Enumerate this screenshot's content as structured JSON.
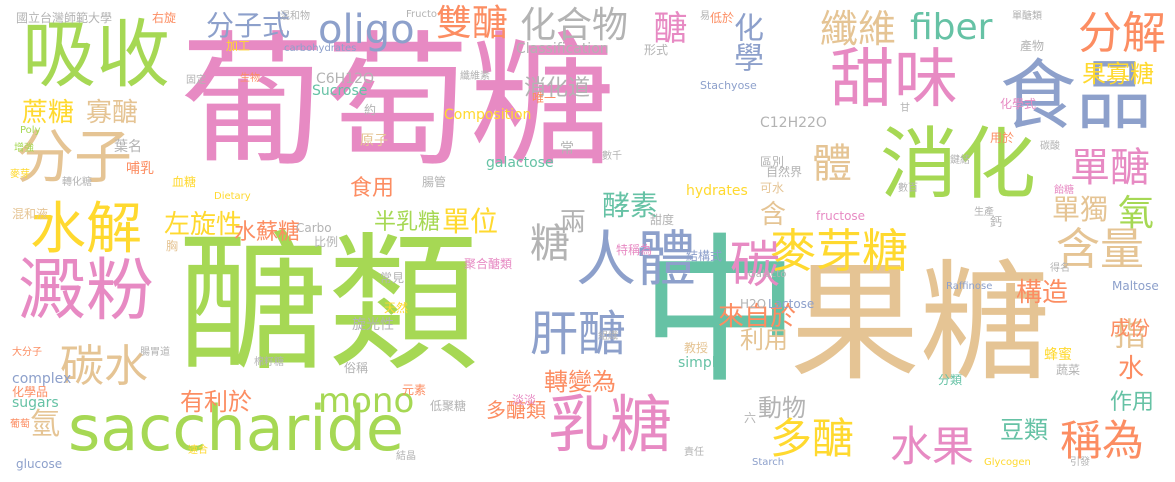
{
  "colors": {
    "pink": "#e78ac3",
    "green": "#a6d854",
    "teal": "#66c2a5",
    "blue": "#8da0cb",
    "orange": "#fc8d62",
    "yellow": "#ffd92f",
    "tan": "#e5c494",
    "grey": "#b3b3b3"
  },
  "words": [
    {
      "text": "葡萄糖",
      "color": "pink"
    },
    {
      "text": "醣類",
      "color": "green"
    },
    {
      "text": "果糖",
      "color": "tan"
    },
    {
      "text": "中",
      "color": "teal"
    },
    {
      "text": "saccharide",
      "color": "green"
    },
    {
      "text": "吸收",
      "color": "green"
    },
    {
      "text": "食品",
      "color": "blue"
    },
    {
      "text": "消化",
      "color": "green"
    },
    {
      "text": "甜味",
      "color": "pink"
    },
    {
      "text": "澱粉",
      "color": "pink"
    },
    {
      "text": "人體",
      "color": "blue"
    },
    {
      "text": "乳糖",
      "color": "pink"
    },
    {
      "text": "分子",
      "color": "tan"
    },
    {
      "text": "水解",
      "color": "yellow"
    },
    {
      "text": "麥芽糖",
      "color": "yellow"
    },
    {
      "text": "碳水",
      "color": "tan"
    },
    {
      "text": "分解",
      "color": "orange"
    },
    {
      "text": "含量",
      "color": "tan"
    },
    {
      "text": "單醣",
      "color": "pink"
    },
    {
      "text": "纖維",
      "color": "tan"
    },
    {
      "text": "fiber",
      "color": "teal"
    },
    {
      "text": "oligo",
      "color": "blue"
    },
    {
      "text": "肝醣",
      "color": "blue"
    },
    {
      "text": "多醣",
      "color": "yellow"
    },
    {
      "text": "水果",
      "color": "pink"
    },
    {
      "text": "稱為",
      "color": "orange"
    },
    {
      "text": "化合物",
      "color": "grey"
    },
    {
      "text": "雙醣",
      "color": "orange"
    },
    {
      "text": "分子式",
      "color": "blue"
    },
    {
      "text": "化學",
      "color": "blue"
    },
    {
      "text": "碳",
      "color": "pink"
    },
    {
      "text": "mono",
      "color": "green"
    },
    {
      "text": "蔗糖",
      "color": "yellow"
    },
    {
      "text": "寡醣",
      "color": "tan"
    },
    {
      "text": "果寡糖",
      "color": "yellow"
    },
    {
      "text": "醣",
      "color": "pink"
    },
    {
      "text": "體",
      "color": "tan"
    },
    {
      "text": "氧",
      "color": "green"
    },
    {
      "text": "單獨",
      "color": "tan"
    },
    {
      "text": "構造",
      "color": "orange"
    },
    {
      "text": "來自於",
      "color": "orange"
    },
    {
      "text": "左旋性",
      "color": "yellow"
    },
    {
      "text": "半乳糖",
      "color": "green"
    },
    {
      "text": "單位",
      "color": "yellow"
    },
    {
      "text": "酵素",
      "color": "teal"
    },
    {
      "text": "食用",
      "color": "orange"
    },
    {
      "text": "水蘇糖",
      "color": "orange"
    },
    {
      "text": "糖",
      "color": "grey"
    },
    {
      "text": "兩",
      "color": "grey"
    },
    {
      "text": "轉變為",
      "color": "orange"
    },
    {
      "text": "有利於",
      "color": "orange"
    },
    {
      "text": "多醣類",
      "color": "orange"
    },
    {
      "text": "動物",
      "color": "grey"
    },
    {
      "text": "利用",
      "color": "tan"
    },
    {
      "text": "指",
      "color": "tan"
    },
    {
      "text": "水",
      "color": "orange"
    },
    {
      "text": "豆類",
      "color": "teal"
    },
    {
      "text": "作用",
      "color": "teal"
    },
    {
      "text": "成份",
      "color": "orange"
    },
    {
      "text": "氫",
      "color": "tan"
    },
    {
      "text": "含",
      "color": "tan"
    },
    {
      "text": "消化道",
      "color": "grey"
    },
    {
      "text": "Composition",
      "color": "yellow"
    },
    {
      "text": "Classification",
      "color": "grey"
    },
    {
      "text": "C6H12O",
      "color": "grey"
    },
    {
      "text": "C12H22O",
      "color": "grey"
    },
    {
      "text": "Sucrose",
      "color": "teal"
    },
    {
      "text": "Stachyose",
      "color": "blue"
    },
    {
      "text": "galactose",
      "color": "teal"
    },
    {
      "text": "hydrates",
      "color": "yellow"
    },
    {
      "text": "fructose",
      "color": "pink"
    },
    {
      "text": "Lactose",
      "color": "blue"
    },
    {
      "text": "Maltose",
      "color": "blue"
    },
    {
      "text": "Raffinose",
      "color": "blue"
    },
    {
      "text": "Starch",
      "color": "blue"
    },
    {
      "text": "Glycogen",
      "color": "yellow"
    },
    {
      "text": "simple",
      "color": "teal"
    },
    {
      "text": "complex",
      "color": "blue"
    },
    {
      "text": "sugars",
      "color": "teal"
    },
    {
      "text": "glucose",
      "color": "blue"
    },
    {
      "text": "Poly",
      "color": "green"
    },
    {
      "text": "Carbo",
      "color": "grey"
    },
    {
      "text": "Dietary",
      "color": "yellow"
    },
    {
      "text": "Galacto",
      "color": "grey"
    },
    {
      "text": "H2O",
      "color": "grey"
    },
    {
      "text": "carbohydrates",
      "color": "blue"
    },
    {
      "text": "Fructo",
      "color": "grey"
    },
    {
      "text": "國立台灣師範大學",
      "color": "grey"
    },
    {
      "text": "混和物",
      "color": "grey"
    },
    {
      "text": "哺乳",
      "color": "orange"
    },
    {
      "text": "葉名",
      "color": "grey"
    },
    {
      "text": "轉化糖",
      "color": "grey"
    },
    {
      "text": "血糖",
      "color": "yellow"
    },
    {
      "text": "麥芽",
      "color": "yellow"
    },
    {
      "text": "混和液",
      "color": "tan"
    },
    {
      "text": "旋光性",
      "color": "grey"
    },
    {
      "text": "比例",
      "color": "grey"
    },
    {
      "text": "腸胃道",
      "color": "grey"
    },
    {
      "text": "蜂蜜",
      "color": "yellow"
    },
    {
      "text": "蔬菜",
      "color": "grey"
    },
    {
      "text": "分類",
      "color": "teal"
    },
    {
      "text": "化學式",
      "color": "pink"
    },
    {
      "text": "聚合醣類",
      "color": "pink"
    },
    {
      "text": "結構式",
      "color": "blue"
    },
    {
      "text": "特稱為",
      "color": "pink"
    },
    {
      "text": "自然界",
      "color": "grey"
    },
    {
      "text": "元素",
      "color": "orange"
    },
    {
      "text": "低聚糖",
      "color": "grey"
    },
    {
      "text": "淡淡",
      "color": "pink"
    },
    {
      "text": "六",
      "color": "grey"
    },
    {
      "text": "纖維素",
      "color": "grey"
    },
    {
      "text": "產物",
      "color": "grey"
    },
    {
      "text": "生產",
      "color": "grey"
    },
    {
      "text": "右旋",
      "color": "orange"
    },
    {
      "text": "加工",
      "color": "yellow"
    },
    {
      "text": "固定",
      "color": "grey"
    },
    {
      "text": "低於",
      "color": "orange"
    },
    {
      "text": "單醣類",
      "color": "grey"
    },
    {
      "text": "數百",
      "color": "grey"
    },
    {
      "text": "可水",
      "color": "tan"
    },
    {
      "text": "用於",
      "color": "orange"
    },
    {
      "text": "飴糖",
      "color": "pink"
    },
    {
      "text": "鍵結",
      "color": "grey"
    },
    {
      "text": "碳酸",
      "color": "grey"
    },
    {
      "text": "甜度",
      "color": "grey"
    },
    {
      "text": "教授",
      "color": "tan"
    },
    {
      "text": "責任",
      "color": "grey"
    },
    {
      "text": "結晶",
      "color": "grey"
    },
    {
      "text": "天然",
      "color": "yellow"
    },
    {
      "text": "俗稱",
      "color": "grey"
    },
    {
      "text": "常見",
      "color": "grey"
    },
    {
      "text": "唯一",
      "color": "orange"
    },
    {
      "text": "約",
      "color": "grey"
    },
    {
      "text": "原子",
      "color": "tan"
    },
    {
      "text": "腸管",
      "color": "grey"
    },
    {
      "text": "區別",
      "color": "grey"
    },
    {
      "text": "大分子",
      "color": "orange"
    },
    {
      "text": "化學品",
      "color": "orange"
    },
    {
      "text": "棉籽糖",
      "color": "grey"
    },
    {
      "text": "胸",
      "color": "tan"
    },
    {
      "text": "得名",
      "color": "grey"
    },
    {
      "text": "引發",
      "color": "grey"
    },
    {
      "text": "速合",
      "color": "yellow"
    },
    {
      "text": "增強",
      "color": "green"
    },
    {
      "text": "常",
      "color": "grey"
    },
    {
      "text": "甘",
      "color": "grey"
    },
    {
      "text": "鈣",
      "color": "grey"
    },
    {
      "text": "葡萄",
      "color": "orange"
    },
    {
      "text": "生物",
      "color": "orange"
    },
    {
      "text": "形式",
      "color": "grey"
    },
    {
      "text": "組織",
      "color": "grey"
    },
    {
      "text": "數千",
      "color": "grey"
    },
    {
      "text": "易",
      "color": "grey"
    }
  ]
}
